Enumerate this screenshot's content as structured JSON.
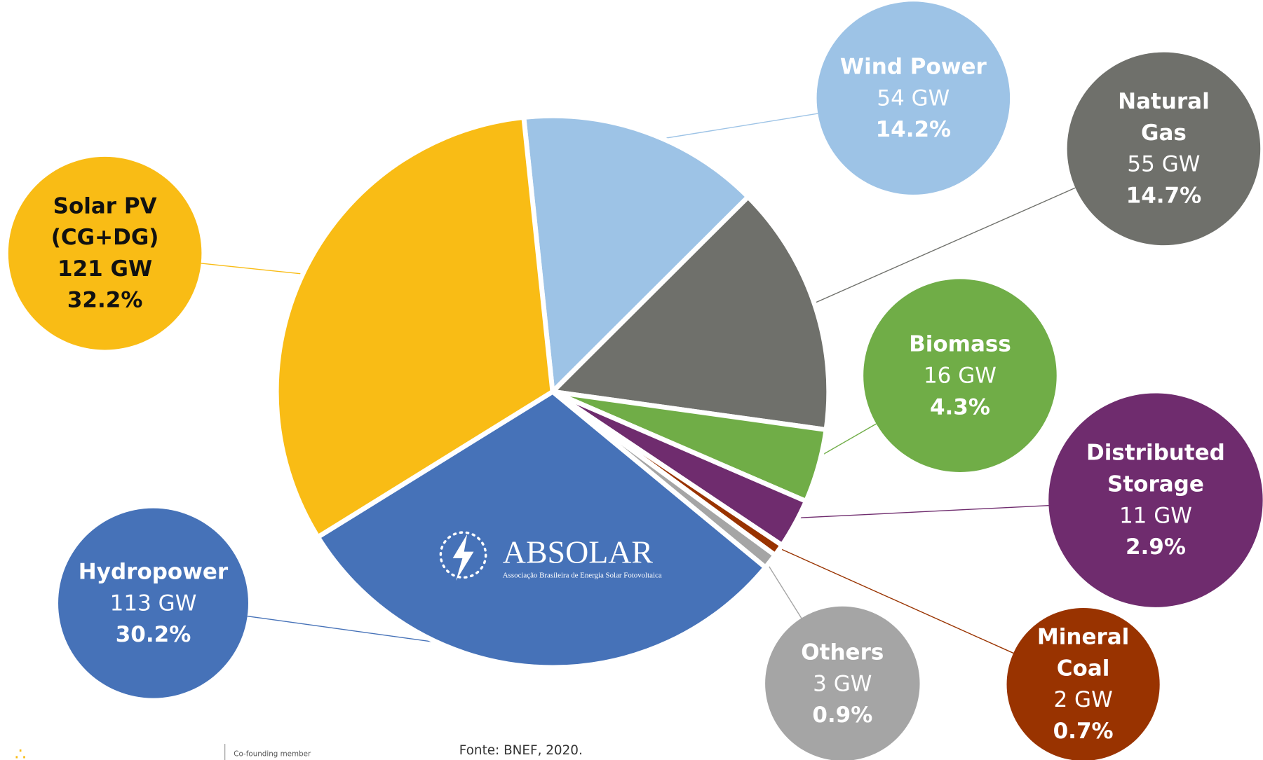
{
  "chart_data": {
    "type": "pie",
    "categories": [
      "Wind Power",
      "Natural Gas",
      "Biomass",
      "Distributed Storage",
      "Mineral Coal",
      "Others",
      "Hydropower",
      "Solar PV (CG+DG)"
    ],
    "values": [
      14.2,
      14.7,
      4.3,
      2.9,
      0.7,
      0.9,
      30.2,
      32.2
    ],
    "value_labels": [
      "14.2%",
      "14.7%",
      "4.3%",
      "2.9%",
      "0.7%",
      "0.9%",
      "30.2%",
      "32.2%"
    ],
    "capacity_labels": [
      "54 GW",
      "55 GW",
      "16 GW",
      "11 GW",
      "2 GW",
      "3 GW",
      "113 GW",
      "121 GW"
    ],
    "colors": [
      "#9dc3e6",
      "#6f706b",
      "#70ad47",
      "#6f2c6e",
      "#993300",
      "#a5a5a5",
      "#4672b8",
      "#f9bc15"
    ],
    "source": "Fonte: BNEF, 2020.",
    "logo": {
      "name": "ABSOLAR",
      "subtitle": "Associação Brasileira de Energia Solar Fotovoltaica"
    },
    "footer_note": "Co-founding member"
  }
}
